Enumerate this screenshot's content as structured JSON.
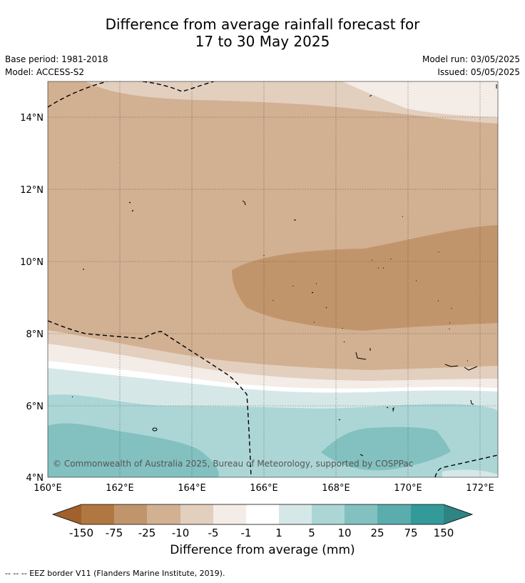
{
  "title": {
    "line1": "Difference from average rainfall forecast for",
    "line2": "17 to 30 May 2025"
  },
  "meta": {
    "base_period": "Base period: 1981-2018",
    "model": "Model: ACCESS-S2",
    "model_run": "Model run: 03/05/2025",
    "issued": "Issued: 05/05/2025"
  },
  "map": {
    "lon_labels": [
      "160°E",
      "162°E",
      "164°E",
      "166°E",
      "168°E",
      "170°E",
      "172°E"
    ],
    "lat_labels": [
      "14°N",
      "12°N",
      "10°N",
      "8°N",
      "6°N",
      "4°N"
    ],
    "copyright": "© Commonwealth of Australia 2025, Bureau of Meteorology, supported by COSPPac"
  },
  "colorbar": {
    "label": "Difference from average (mm)",
    "ticks": [
      "-150",
      "-75",
      "-25",
      "-10",
      "-5",
      "-1",
      "1",
      "5",
      "10",
      "25",
      "75",
      "150"
    ],
    "colors": [
      "#a0612d",
      "#b07840",
      "#c1956b",
      "#d2b092",
      "#e3cfbe",
      "#f4ece6",
      "#ffffff",
      "#d5e8e7",
      "#acd6d6",
      "#82c1c0",
      "#5aadac",
      "#339a99",
      "#2e8482"
    ]
  },
  "legend": {
    "eez": "--  --  -- EEZ border V11 (Flanders Marine Institute, 2019)."
  }
}
